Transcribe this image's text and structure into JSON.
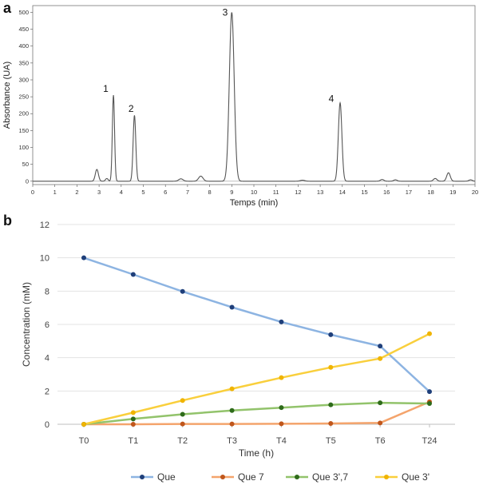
{
  "panels": {
    "a_label": "a",
    "b_label": "b"
  },
  "chart_data": [
    {
      "type": "line",
      "xlabel": "Temps (min)",
      "ylabel": "Absorbance (UA)",
      "xlim": [
        0,
        20
      ],
      "ylim": [
        -10,
        520
      ],
      "x_ticks": [
        "0",
        "1",
        "2",
        "3",
        "4",
        "5",
        "6",
        "7",
        "8",
        "9",
        "10",
        "11",
        "12",
        "13",
        "14",
        "15",
        "16",
        "17",
        "18",
        "19",
        "20"
      ],
      "y_ticks": [
        "0",
        "50",
        "100",
        "150",
        "200",
        "250",
        "300",
        "350",
        "400",
        "450",
        "500"
      ],
      "color": "#555555",
      "peaks": [
        {
          "t": 2.9,
          "h": 35,
          "w": 0.07
        },
        {
          "t": 3.35,
          "h": 8,
          "w": 0.06
        },
        {
          "t": 3.65,
          "h": 255,
          "w": 0.05
        },
        {
          "t": 4.6,
          "h": 195,
          "w": 0.06
        },
        {
          "t": 6.7,
          "h": 7,
          "w": 0.1
        },
        {
          "t": 7.6,
          "h": 15,
          "w": 0.1
        },
        {
          "t": 9.0,
          "h": 500,
          "w": 0.11
        },
        {
          "t": 12.2,
          "h": 3,
          "w": 0.1
        },
        {
          "t": 13.9,
          "h": 232,
          "w": 0.08
        },
        {
          "t": 15.8,
          "h": 5,
          "w": 0.08
        },
        {
          "t": 16.4,
          "h": 4,
          "w": 0.08
        },
        {
          "t": 18.2,
          "h": 8,
          "w": 0.08
        },
        {
          "t": 18.8,
          "h": 25,
          "w": 0.08
        },
        {
          "t": 19.8,
          "h": 4,
          "w": 0.08
        }
      ],
      "annotations": [
        {
          "text": "1",
          "x": 3.3,
          "y": 265
        },
        {
          "text": "2",
          "x": 4.45,
          "y": 205
        },
        {
          "text": "3",
          "x": 8.7,
          "y": 490
        },
        {
          "text": "4",
          "x": 13.5,
          "y": 235
        }
      ]
    },
    {
      "type": "line",
      "xlabel": "Time (h)",
      "ylabel": "Concentration (mM)",
      "categories": [
        "T0",
        "T1",
        "T2",
        "T3",
        "T4",
        "T5",
        "T6",
        "T24"
      ],
      "ylim": [
        0,
        12
      ],
      "y_ticks": [
        "0",
        "2",
        "4",
        "6",
        "8",
        "10",
        "12"
      ],
      "series": [
        {
          "name": "Que",
          "color": "#8db4e2",
          "marker": "#1f3f7a",
          "values": [
            10.0,
            9.0,
            7.98,
            7.03,
            6.15,
            5.38,
            4.7,
            1.96
          ]
        },
        {
          "name": "Que 7",
          "color": "#f4a46c",
          "marker": "#c0561b",
          "values": [
            0.0,
            0.0,
            0.02,
            0.02,
            0.03,
            0.05,
            0.08,
            1.35
          ]
        },
        {
          "name": "Que 3',7",
          "color": "#92c36b",
          "marker": "#2e6b1a",
          "values": [
            0.0,
            0.32,
            0.6,
            0.83,
            1.0,
            1.17,
            1.29,
            1.25
          ]
        },
        {
          "name": "Que 3'",
          "color": "#f9cf3c",
          "marker": "#f0b400",
          "values": [
            0.0,
            0.7,
            1.43,
            2.13,
            2.8,
            3.42,
            3.95,
            5.44
          ]
        }
      ],
      "legend": "bottom"
    }
  ]
}
